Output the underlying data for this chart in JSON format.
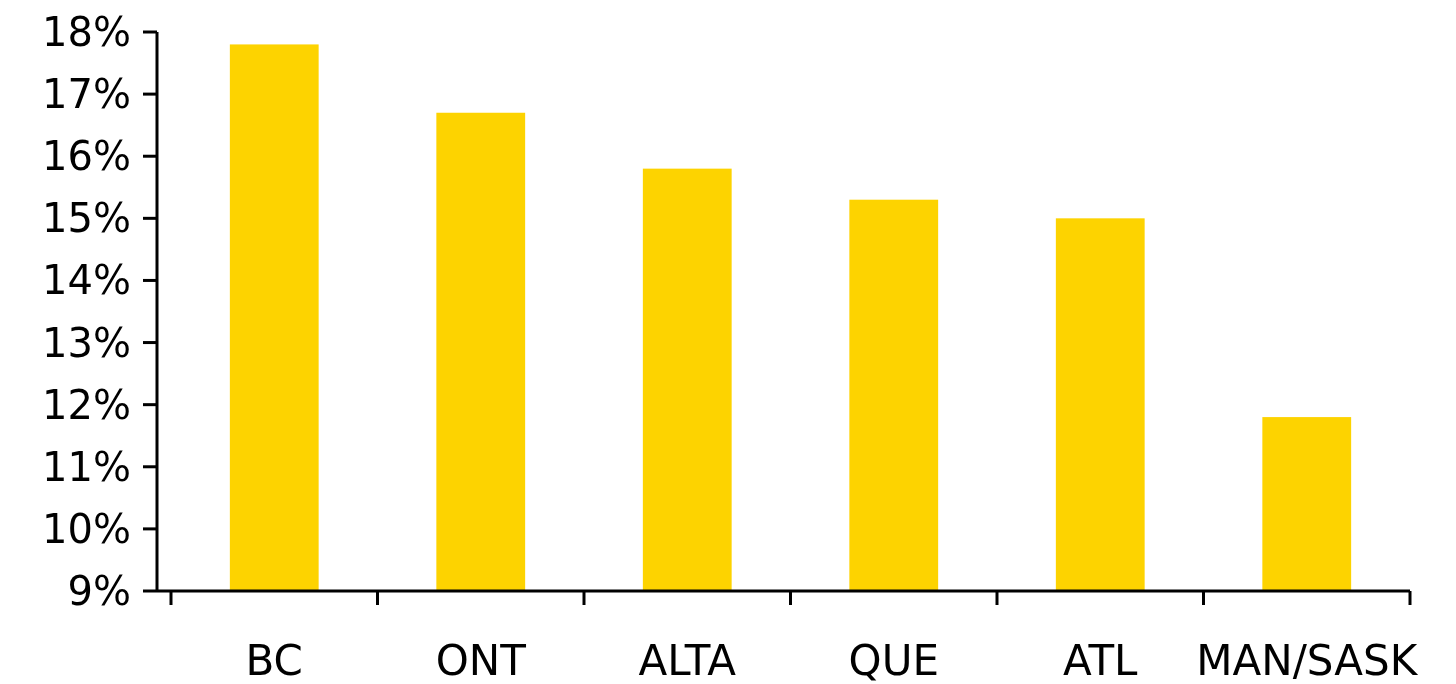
{
  "chart_data": {
    "type": "bar",
    "categories": [
      "BC",
      "ONT",
      "ALTA",
      "QUE",
      "ATL",
      "MAN/SASK"
    ],
    "values": [
      17.8,
      16.7,
      15.8,
      15.3,
      15.0,
      11.8
    ],
    "color": "#fdd300",
    "ylim": [
      9,
      18
    ],
    "yticks": [
      {
        "value": 9,
        "label": "9%"
      },
      {
        "value": 10,
        "label": "10%"
      },
      {
        "value": 11,
        "label": "11%"
      },
      {
        "value": 12,
        "label": "12%"
      },
      {
        "value": 13,
        "label": "13%"
      },
      {
        "value": 14,
        "label": "14%"
      },
      {
        "value": 15,
        "label": "15%"
      },
      {
        "value": 16,
        "label": "16%"
      },
      {
        "value": 17,
        "label": "17%"
      },
      {
        "value": 18,
        "label": "18%"
      }
    ],
    "grid": false
  }
}
